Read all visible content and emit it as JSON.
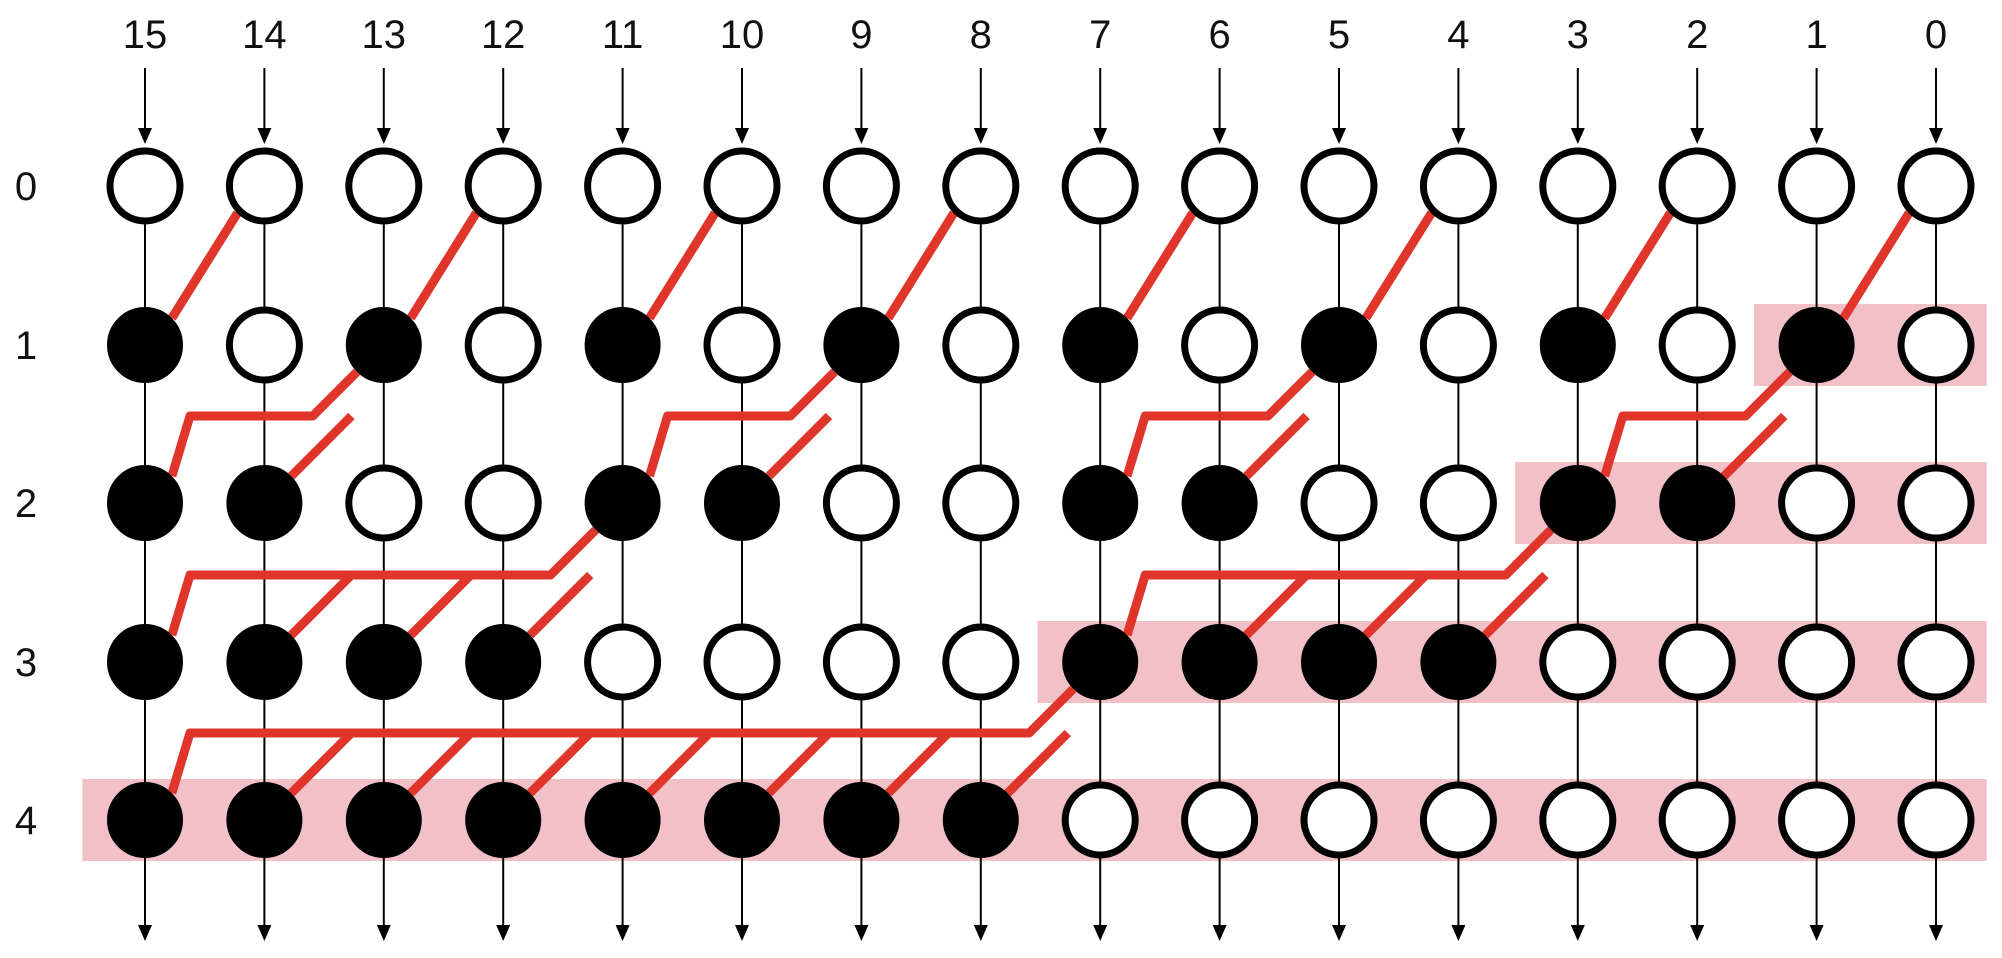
{
  "column_labels": [
    "15",
    "14",
    "13",
    "12",
    "11",
    "10",
    "9",
    "8",
    "7",
    "6",
    "5",
    "4",
    "3",
    "2",
    "1",
    "0"
  ],
  "row_labels": [
    "0",
    "1",
    "2",
    "3",
    "4"
  ],
  "filled": [
    [
      0,
      0,
      0,
      0,
      0,
      0,
      0,
      0,
      0,
      0,
      0,
      0,
      0,
      0,
      0,
      0
    ],
    [
      1,
      0,
      1,
      0,
      1,
      0,
      1,
      0,
      1,
      0,
      1,
      0,
      1,
      0,
      1,
      0
    ],
    [
      1,
      1,
      0,
      0,
      1,
      1,
      0,
      0,
      1,
      1,
      0,
      0,
      1,
      1,
      0,
      0
    ],
    [
      1,
      1,
      1,
      1,
      0,
      0,
      0,
      0,
      1,
      1,
      1,
      1,
      0,
      0,
      0,
      0
    ],
    [
      1,
      1,
      1,
      1,
      1,
      1,
      1,
      1,
      0,
      0,
      0,
      0,
      0,
      0,
      0,
      0
    ]
  ],
  "highlights": [
    {
      "row": 1,
      "from_col": 14,
      "to_col": 15
    },
    {
      "row": 2,
      "from_col": 12,
      "to_col": 15
    },
    {
      "row": 3,
      "from_col": 8,
      "to_col": 15
    },
    {
      "row": 4,
      "from_col": 0,
      "to_col": 15
    }
  ],
  "colors": {
    "node_outline": "#000000",
    "node_filled": "#000000",
    "node_empty": "#ffffff",
    "wire": "#000000",
    "carry_line": "#e0352b",
    "highlight": "#f2c1c8",
    "label": "#111111"
  }
}
